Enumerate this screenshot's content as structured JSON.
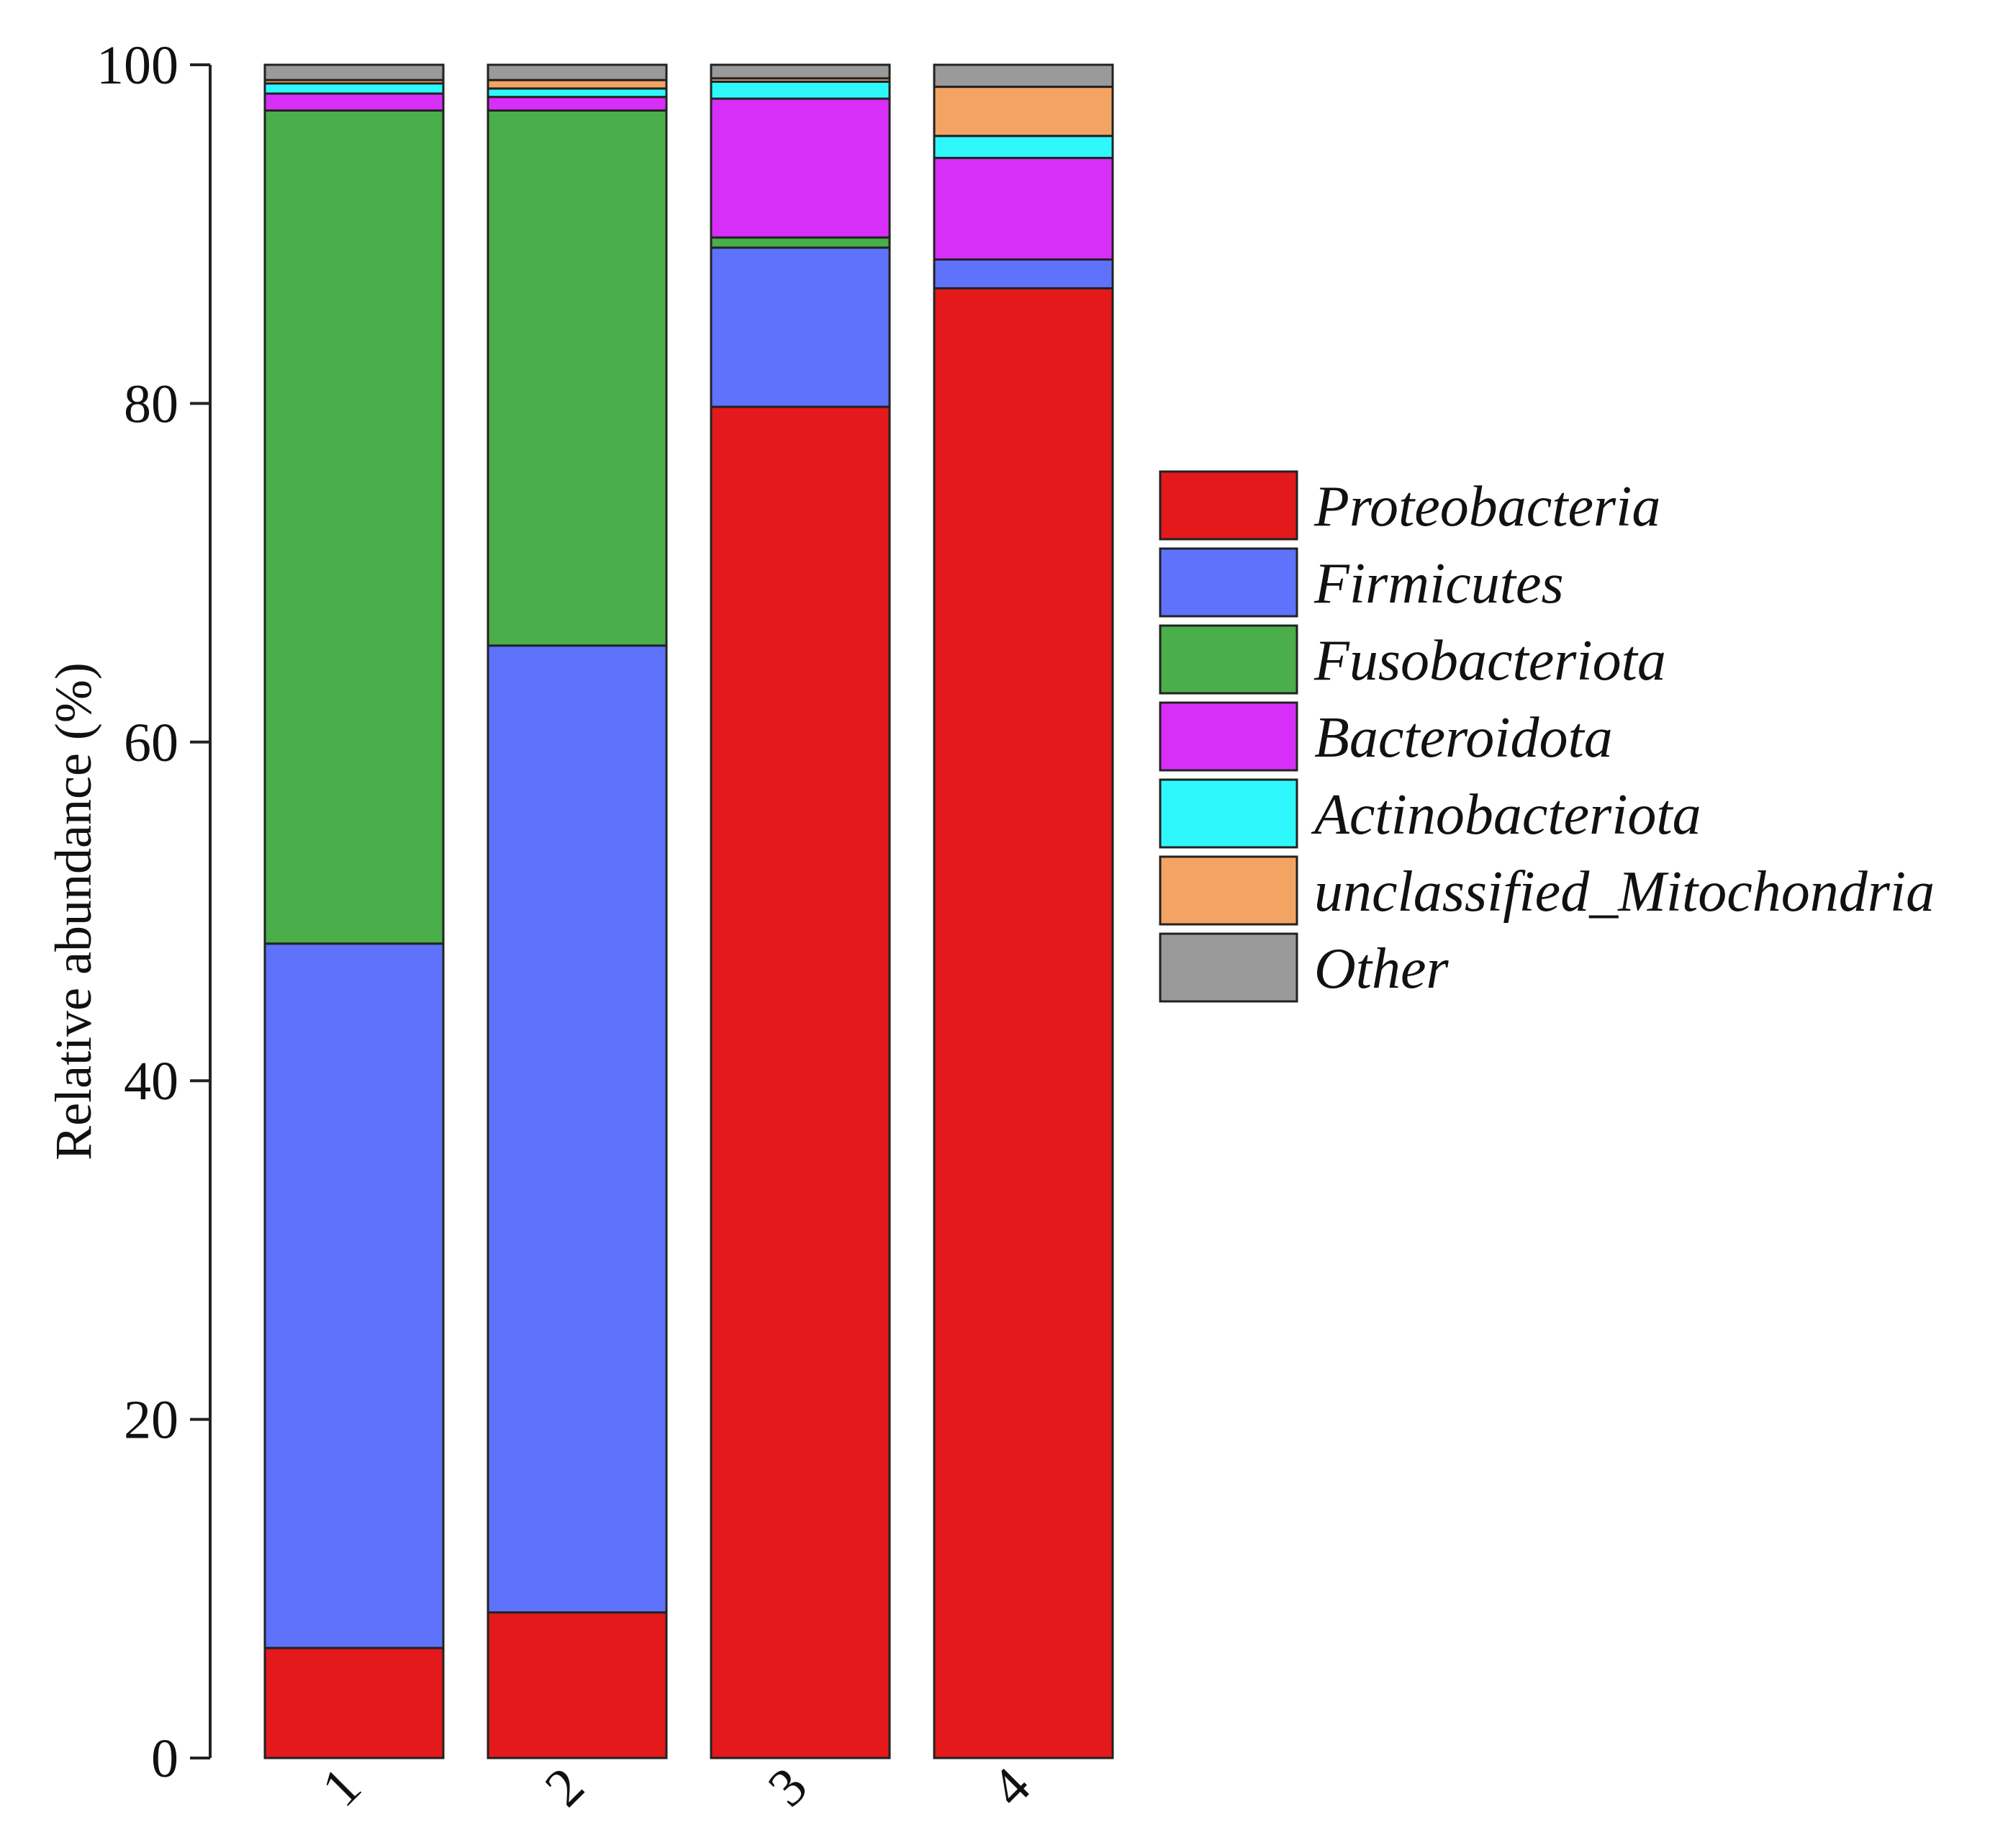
{
  "chart_data": {
    "type": "bar",
    "stacked": true,
    "title": "",
    "xlabel": "",
    "ylabel": "Relative abundance (%)",
    "ylim": [
      0,
      100
    ],
    "yticks": [
      "0",
      "20",
      "40",
      "60",
      "80",
      "100"
    ],
    "grid": false,
    "legend_position": "right",
    "categories": [
      "1",
      "2",
      "3",
      "4"
    ],
    "series": [
      {
        "name": "Proteobacteria",
        "color": "#e3191b",
        "values": [
          6.5,
          8.6,
          79.8,
          86.8
        ]
      },
      {
        "name": "Firmicutes",
        "color": "#5e72fc",
        "values": [
          41.6,
          57.1,
          9.4,
          1.7
        ]
      },
      {
        "name": "Fusobacteriota",
        "color": "#4aae4a",
        "values": [
          49.2,
          31.6,
          0.6,
          0.0
        ]
      },
      {
        "name": "Bacteroidota",
        "color": "#d72ff8",
        "values": [
          1.0,
          0.8,
          8.2,
          6.0
        ]
      },
      {
        "name": "Actinobacteriota",
        "color": "#2ff8fc",
        "values": [
          0.6,
          0.5,
          1.0,
          1.3
        ]
      },
      {
        "name": "unclassified_Mitochondria",
        "color": "#f3a463",
        "values": [
          0.2,
          0.5,
          0.2,
          2.9
        ]
      },
      {
        "name": "Other",
        "color": "#9a9a9a",
        "values": [
          0.9,
          0.9,
          0.8,
          1.3
        ]
      }
    ]
  }
}
